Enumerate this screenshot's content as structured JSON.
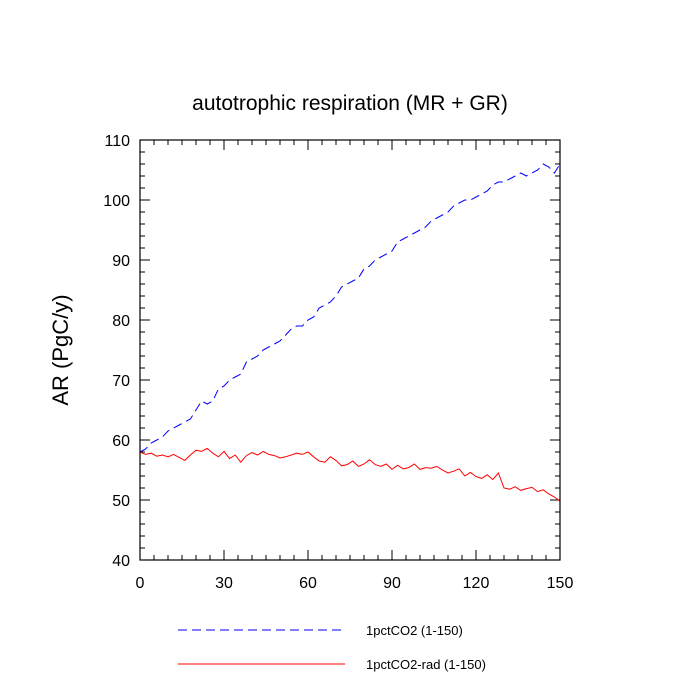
{
  "chart_data": {
    "type": "line",
    "title": "autotrophic respiration (MR + GR)",
    "xlabel": "",
    "ylabel": "AR  (PgC/y)",
    "xlim": [
      0,
      150
    ],
    "ylim": [
      40,
      110
    ],
    "xticks": [
      0,
      30,
      60,
      90,
      120,
      150
    ],
    "yticks": [
      40,
      50,
      60,
      70,
      80,
      90,
      100,
      110
    ],
    "grid": false,
    "legend": "bottom",
    "series": [
      {
        "name": "1pctCO2 (1-150)",
        "color": "#0000ff",
        "dash": "dashed",
        "x": [
          0,
          2,
          4,
          6,
          8,
          10,
          12,
          14,
          16,
          18,
          20,
          22,
          24,
          26,
          28,
          30,
          32,
          34,
          36,
          38,
          40,
          42,
          44,
          46,
          48,
          50,
          52,
          54,
          56,
          58,
          60,
          62,
          64,
          66,
          68,
          70,
          72,
          74,
          76,
          78,
          80,
          82,
          84,
          86,
          88,
          90,
          92,
          94,
          96,
          98,
          100,
          102,
          104,
          106,
          108,
          110,
          112,
          114,
          116,
          118,
          120,
          122,
          124,
          126,
          128,
          130,
          132,
          134,
          136,
          138,
          140,
          142,
          144,
          146,
          148,
          150
        ],
        "values": [
          58,
          58.5,
          59.5,
          60,
          60.5,
          61.5,
          62,
          62.5,
          63,
          63.5,
          65,
          66.5,
          66,
          66.5,
          68.5,
          69,
          70,
          70.5,
          71,
          73,
          73.5,
          74,
          75,
          75.5,
          76,
          76.5,
          77.5,
          78.5,
          79,
          79,
          80,
          80.5,
          82,
          82.5,
          83,
          84,
          85.5,
          86,
          86.5,
          87,
          88.5,
          89,
          90,
          90.5,
          91,
          91.5,
          93,
          93.5,
          94,
          94.5,
          95,
          95.5,
          96.5,
          97,
          97.5,
          98,
          99,
          99.5,
          100,
          100,
          100.5,
          101,
          101.5,
          102.5,
          103,
          103,
          103.5,
          104,
          104.5,
          104,
          104.5,
          105,
          106,
          105.5,
          104.5,
          106
        ]
      },
      {
        "name": "1pctCO2-rad (1-150)",
        "color": "#ff0000",
        "dash": "solid",
        "x": [
          0,
          2,
          4,
          6,
          8,
          10,
          12,
          14,
          16,
          18,
          20,
          22,
          24,
          26,
          28,
          30,
          32,
          34,
          36,
          38,
          40,
          42,
          44,
          46,
          48,
          50,
          52,
          54,
          56,
          58,
          60,
          62,
          64,
          66,
          68,
          70,
          72,
          74,
          76,
          78,
          80,
          82,
          84,
          86,
          88,
          90,
          92,
          94,
          96,
          98,
          100,
          102,
          104,
          106,
          108,
          110,
          112,
          114,
          116,
          118,
          120,
          122,
          124,
          126,
          128,
          130,
          132,
          134,
          136,
          138,
          140,
          142,
          144,
          146,
          148,
          150
        ],
        "values": [
          58,
          57.6,
          57.8,
          57.3,
          57.5,
          57.2,
          57.6,
          57.1,
          56.6,
          57.5,
          58.3,
          58.1,
          58.6,
          57.8,
          57.2,
          58.1,
          56.9,
          57.5,
          56.3,
          57.4,
          57.9,
          57.5,
          58.1,
          57.6,
          57.4,
          57.0,
          57.2,
          57.5,
          57.8,
          57.6,
          58.0,
          57.2,
          56.5,
          56.3,
          57.2,
          56.6,
          55.7,
          55.9,
          56.5,
          55.6,
          56.0,
          56.7,
          55.9,
          55.6,
          56.0,
          55.1,
          55.8,
          55.2,
          55.4,
          56.0,
          55.1,
          55.4,
          55.3,
          55.6,
          55.0,
          54.5,
          54.8,
          55.2,
          54.0,
          54.6,
          53.9,
          53.6,
          54.2,
          53.4,
          54.5,
          52.0,
          51.8,
          52.2,
          51.6,
          51.9,
          52.1,
          51.4,
          51.7,
          51.0,
          50.5,
          49.8
        ]
      }
    ]
  }
}
